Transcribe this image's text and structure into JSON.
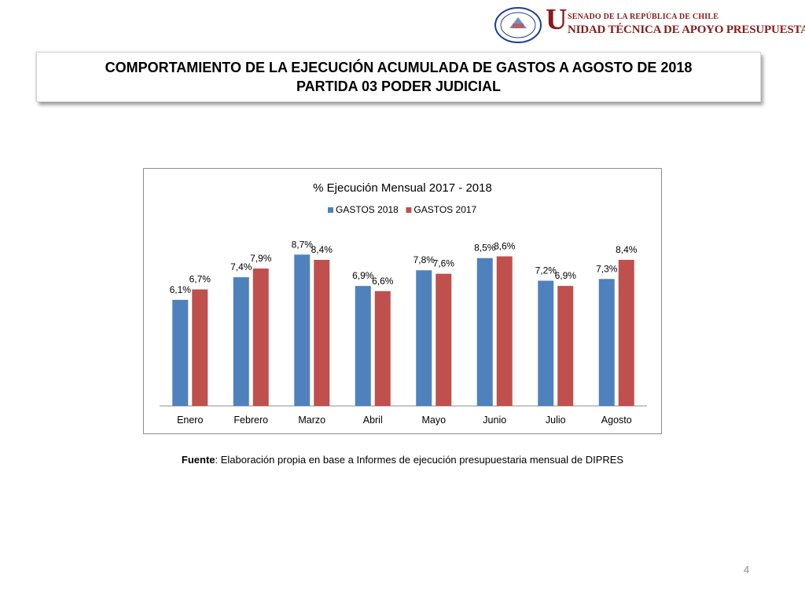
{
  "header": {
    "seal_text": "REPÚBLICA DE CHILE",
    "seal_bottom": "SENADO",
    "logo_line1": "SENADO DE LA REPÚBLICA DE CHILE",
    "logo_big_letter": "U",
    "logo_line2": "NIDAD TÉCNICA DE APOYO PRESUPUESTARIO"
  },
  "title": {
    "line1": "COMPORTAMIENTO DE LA EJECUCIÓN ACUMULADA DE GASTOS A AGOSTO DE 2018",
    "line2": "PARTIDA 03 PODER JUDICIAL"
  },
  "chart_data": {
    "type": "bar",
    "title": "% Ejecución Mensual 2017 - 2018",
    "categories": [
      "Enero",
      "Febrero",
      "Marzo",
      "Abril",
      "Mayo",
      "Junio",
      "Julio",
      "Agosto"
    ],
    "series": [
      {
        "name": "GASTOS 2018",
        "color": "#4f81bd",
        "values": [
          6.1,
          7.4,
          8.7,
          6.9,
          7.8,
          8.5,
          7.2,
          7.3
        ],
        "labels": [
          "6,1%",
          "7,4%",
          "8,7%",
          "6,9%",
          "7,8%",
          "8,5%",
          "7,2%",
          "7,3%"
        ]
      },
      {
        "name": "GASTOS 2017",
        "color": "#c0504d",
        "values": [
          6.7,
          7.9,
          8.4,
          6.6,
          7.6,
          8.6,
          6.9,
          8.4
        ],
        "labels": [
          "6,7%",
          "7,9%",
          "8,4%",
          "6,6%",
          "7,6%",
          "8,6%",
          "6,9%",
          "8,4%"
        ]
      }
    ],
    "ylim": [
      0,
      9.3
    ],
    "legend": "top",
    "grid": false
  },
  "source": {
    "label": "Fuente",
    "text": ": Elaboración propia en base  a Informes de ejecución presupuestaria mensual de DIPRES"
  },
  "page_number": "4"
}
